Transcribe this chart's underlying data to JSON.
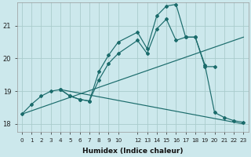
{
  "xlabel": "Humidex (Indice chaleur)",
  "bg_color": "#cce8ec",
  "grid_color": "#aacccc",
  "line_color": "#1a6b6b",
  "xlim": [
    -0.5,
    23.5
  ],
  "ylim": [
    17.75,
    21.7
  ],
  "yticks": [
    18,
    19,
    20,
    21
  ],
  "xticks": [
    0,
    1,
    2,
    3,
    4,
    5,
    6,
    7,
    8,
    9,
    10,
    12,
    13,
    14,
    15,
    16,
    17,
    18,
    19,
    20,
    21,
    22,
    23
  ],
  "curve1_x": [
    0,
    1,
    2,
    3,
    4,
    5,
    6,
    7,
    8,
    9,
    10,
    12,
    13,
    14,
    15,
    16,
    17,
    18,
    19,
    20,
    21,
    22,
    23
  ],
  "curve1_y": [
    18.3,
    18.6,
    18.85,
    19.0,
    19.05,
    18.85,
    18.75,
    18.7,
    19.6,
    20.1,
    20.5,
    20.8,
    20.3,
    21.3,
    21.6,
    21.65,
    20.65,
    20.65,
    19.8,
    18.35,
    18.2,
    18.1,
    18.05
  ],
  "curve2_x": [
    4,
    5,
    6,
    7,
    8,
    9,
    10,
    12,
    13,
    14,
    15,
    16,
    17,
    18,
    19,
    20
  ],
  "curve2_y": [
    19.05,
    18.85,
    18.75,
    18.7,
    19.35,
    19.85,
    20.15,
    20.55,
    20.15,
    20.9,
    21.2,
    20.55,
    20.65,
    20.65,
    19.75,
    19.75
  ],
  "trend1_x": [
    0,
    23
  ],
  "trend1_y": [
    18.3,
    20.65
  ],
  "trend2_x": [
    4,
    23
  ],
  "trend2_y": [
    19.05,
    18.0
  ]
}
